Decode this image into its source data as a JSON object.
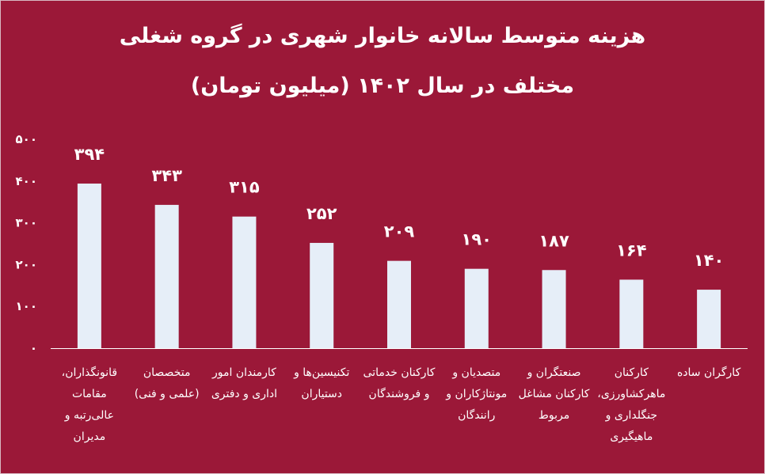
{
  "chart_data": {
    "type": "bar",
    "title_line1": "هزینه متوسط سالانه خانوار شهری در گروه شغلی",
    "title_line2": "مختلف در سال ۱۴۰۲ (میلیون تومان)",
    "categories": [
      "قانونگذاران، مقامات عالی‌رتبه و مدیران",
      "متخصصان (علمی و فنی)",
      "کارمندان امور اداری و دفتری",
      "تکنیسین‌ها و دستیاران",
      "کارکنان خدماتی و فروشندگان",
      "متصدیان و مونتاژکاران و رانندگان",
      "صنعتگران و کارکنان مشاغل مربوط",
      "کارکنان ماهرکشاورزی، جنگلداری و ماهیگیری",
      "کارگران ساده"
    ],
    "values": [
      394,
      343,
      315,
      252,
      209,
      190,
      187,
      164,
      140
    ],
    "value_labels": [
      "۳۹۴",
      "۳۴۳",
      "۳۱۵",
      "۲۵۲",
      "۲۰۹",
      "۱۹۰",
      "۱۸۷",
      "۱۶۴",
      "۱۴۰"
    ],
    "y_ticks": [
      0,
      100,
      200,
      300,
      400,
      500
    ],
    "y_tick_labels": [
      "۰",
      "۱۰۰",
      "۲۰۰",
      "۳۰۰",
      "۴۰۰",
      "۵۰۰"
    ],
    "ylim": [
      0,
      500
    ],
    "grid": false,
    "legend": "none"
  },
  "colors": {
    "background": "#9b1838",
    "bar": "#e6eef8",
    "text": "#ffffff"
  }
}
